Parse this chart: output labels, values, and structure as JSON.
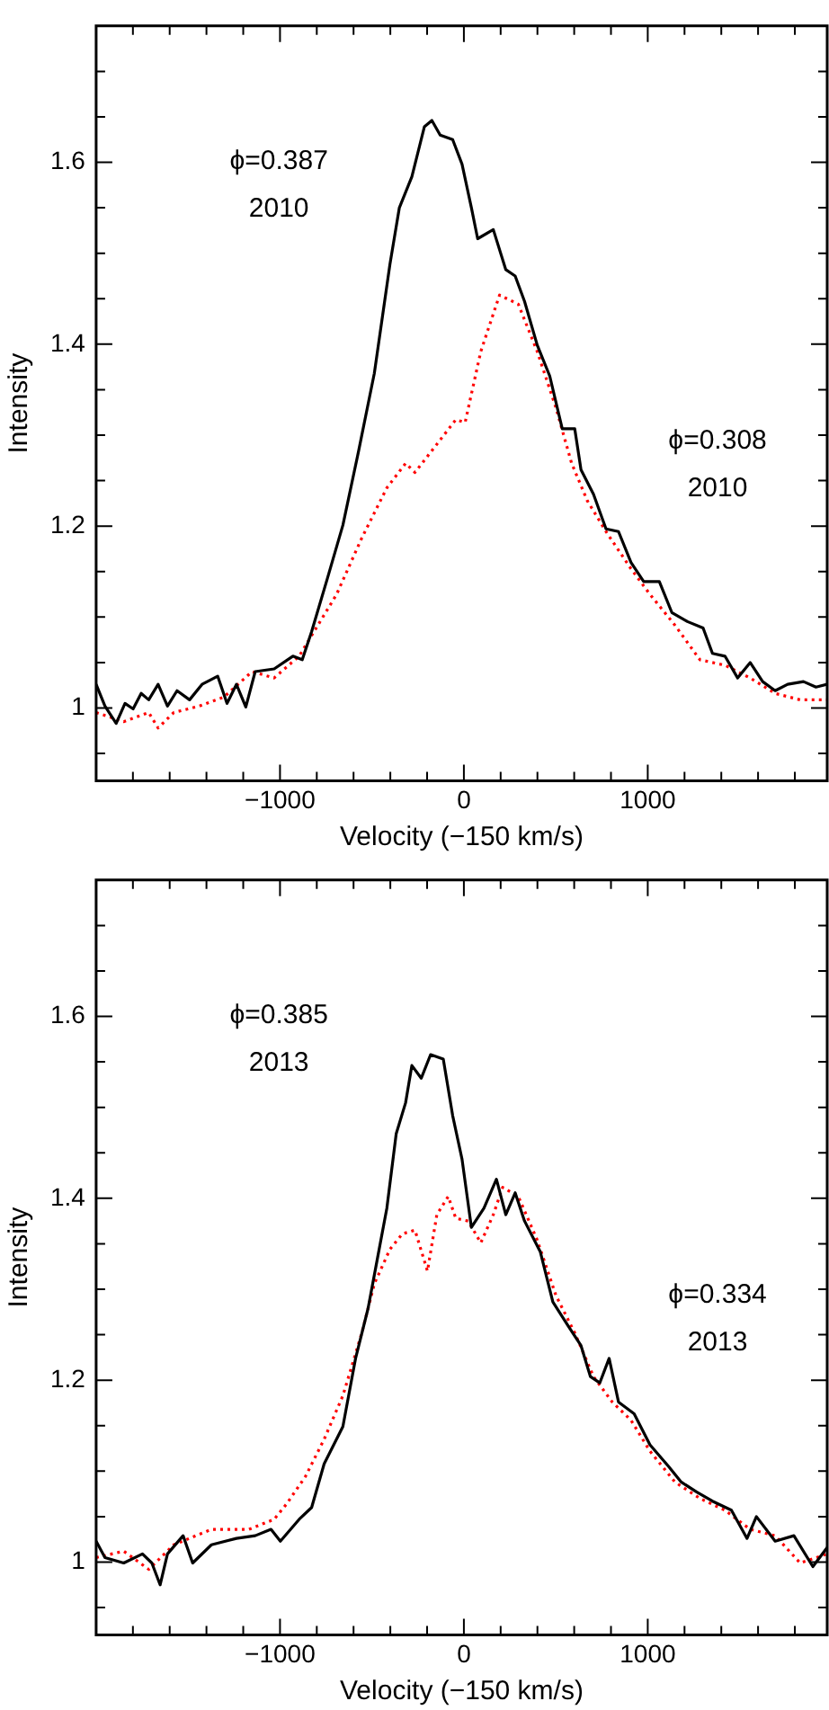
{
  "chart_data": [
    {
      "type": "line",
      "xlabel": "Velocity (−150 km/s)",
      "ylabel": "Intensity",
      "xlim": [
        -2000,
        1976
      ],
      "ylim": [
        0.92,
        1.75
      ],
      "xticks": [
        {
          "value": -1800,
          "label": null
        },
        {
          "value": -1600,
          "label": null
        },
        {
          "value": -1400,
          "label": null
        },
        {
          "value": -1200,
          "label": null
        },
        {
          "value": -1000,
          "label": "−1000"
        },
        {
          "value": -800,
          "label": null
        },
        {
          "value": -600,
          "label": null
        },
        {
          "value": -400,
          "label": null
        },
        {
          "value": -200,
          "label": null
        },
        {
          "value": 0,
          "label": "0"
        },
        {
          "value": 200,
          "label": null
        },
        {
          "value": 400,
          "label": null
        },
        {
          "value": 600,
          "label": null
        },
        {
          "value": 800,
          "label": null
        },
        1000,
        {
          "value": 1200,
          "label": null
        },
        {
          "value": 1400,
          "label": null
        },
        {
          "value": 1600,
          "label": null
        },
        {
          "value": 1800,
          "label": null
        }
      ],
      "yticks": [
        {
          "value": 0.95,
          "label": null
        },
        1,
        {
          "value": 1.05,
          "label": null
        },
        {
          "value": 1.1,
          "label": null
        },
        {
          "value": 1.15,
          "label": null
        },
        1.2,
        {
          "value": 1.25,
          "label": null
        },
        {
          "value": 1.3,
          "label": null
        },
        {
          "value": 1.35,
          "label": null
        },
        1.4,
        {
          "value": 1.45,
          "label": null
        },
        {
          "value": 1.5,
          "label": null
        },
        {
          "value": 1.55,
          "label": null
        },
        1.6,
        {
          "value": 1.65,
          "label": null
        },
        {
          "value": 1.7,
          "label": null
        }
      ],
      "grid": false,
      "legend": false,
      "marker": "none",
      "annotations": [
        "ϕ=0.387",
        "2010",
        "ϕ=0.308",
        "2010"
      ],
      "series": [
        {
          "color": "#000000",
          "line_style": "solid",
          "x": [
            -2000,
            -1952,
            -1891,
            -1843,
            -1799,
            -1755,
            -1714,
            -1663,
            -1612,
            -1560,
            -1492,
            -1424,
            -1339,
            -1288,
            -1237,
            -1186,
            -1135,
            -1032,
            -930,
            -879,
            -828,
            -743,
            -658,
            -572,
            -487,
            -402,
            -351,
            -283,
            -215,
            -174,
            -129,
            -61,
            -10,
            41,
            75,
            160,
            228,
            279,
            330,
            399,
            467,
            535,
            603,
            637,
            705,
            773,
            841,
            909,
            978,
            1063,
            1131,
            1216,
            1301,
            1352,
            1420,
            1489,
            1557,
            1625,
            1693,
            1761,
            1847,
            1915,
            1976
          ],
          "values": [
            1.026,
            1.002,
            0.983,
            1.005,
            0.999,
            1.016,
            1.009,
            1.026,
            1.002,
            1.019,
            1.009,
            1.026,
            1.035,
            1.005,
            1.026,
            1.001,
            1.04,
            1.043,
            1.057,
            1.053,
            1.084,
            1.142,
            1.201,
            1.283,
            1.368,
            1.488,
            1.55,
            1.584,
            1.639,
            1.646,
            1.63,
            1.625,
            1.598,
            1.55,
            1.516,
            1.526,
            1.482,
            1.475,
            1.447,
            1.399,
            1.365,
            1.307,
            1.307,
            1.262,
            1.235,
            1.197,
            1.194,
            1.16,
            1.139,
            1.139,
            1.105,
            1.095,
            1.088,
            1.06,
            1.057,
            1.033,
            1.05,
            1.029,
            1.019,
            1.026,
            1.029,
            1.023,
            1.026
          ]
        },
        {
          "color": "#ff0000",
          "line_style": "dotted",
          "x": [
            -2000,
            -1850,
            -1714,
            -1663,
            -1578,
            -1441,
            -1305,
            -1152,
            -1032,
            -896,
            -794,
            -692,
            -555,
            -419,
            -317,
            -266,
            -147,
            -44,
            7,
            92,
            194,
            296,
            399,
            501,
            586,
            671,
            773,
            909,
            1012,
            1148,
            1284,
            1420,
            1557,
            1693,
            1829,
            1976
          ],
          "values": [
            0.995,
            0.985,
            0.995,
            0.978,
            0.995,
            1.002,
            1.012,
            1.04,
            1.033,
            1.057,
            1.091,
            1.125,
            1.187,
            1.242,
            1.269,
            1.259,
            1.29,
            1.317,
            1.314,
            1.392,
            1.454,
            1.444,
            1.392,
            1.33,
            1.269,
            1.228,
            1.194,
            1.153,
            1.125,
            1.091,
            1.053,
            1.047,
            1.033,
            1.016,
            1.009,
            1.009
          ]
        }
      ]
    },
    {
      "type": "line",
      "xlabel": "Velocity (−150 km/s)",
      "ylabel": "Intensity",
      "xlim": [
        -2000,
        1976
      ],
      "ylim": [
        0.92,
        1.75
      ],
      "xticks": [
        {
          "value": -1800,
          "label": null
        },
        {
          "value": -1600,
          "label": null
        },
        {
          "value": -1400,
          "label": null
        },
        {
          "value": -1200,
          "label": null
        },
        {
          "value": -1000,
          "label": "−1000"
        },
        {
          "value": -800,
          "label": null
        },
        {
          "value": -600,
          "label": null
        },
        {
          "value": -400,
          "label": null
        },
        {
          "value": -200,
          "label": null
        },
        {
          "value": 0,
          "label": "0"
        },
        {
          "value": 200,
          "label": null
        },
        {
          "value": 400,
          "label": null
        },
        {
          "value": 600,
          "label": null
        },
        {
          "value": 800,
          "label": null
        },
        1000,
        {
          "value": 1200,
          "label": null
        },
        {
          "value": 1400,
          "label": null
        },
        {
          "value": 1600,
          "label": null
        },
        {
          "value": 1800,
          "label": null
        }
      ],
      "yticks": [
        {
          "value": 0.95,
          "label": null
        },
        1,
        {
          "value": 1.05,
          "label": null
        },
        {
          "value": 1.1,
          "label": null
        },
        {
          "value": 1.15,
          "label": null
        },
        1.2,
        {
          "value": 1.25,
          "label": null
        },
        {
          "value": 1.3,
          "label": null
        },
        {
          "value": 1.35,
          "label": null
        },
        1.4,
        {
          "value": 1.45,
          "label": null
        },
        {
          "value": 1.5,
          "label": null
        },
        {
          "value": 1.55,
          "label": null
        },
        1.6,
        {
          "value": 1.65,
          "label": null
        },
        {
          "value": 1.7,
          "label": null
        }
      ],
      "grid": false,
      "legend": false,
      "marker": "none",
      "annotations": [
        "ϕ=0.385",
        "2013",
        "ϕ=0.334",
        "2013"
      ],
      "series": [
        {
          "color": "#000000",
          "line_style": "solid",
          "x": [
            -2000,
            -1952,
            -1850,
            -1748,
            -1697,
            -1652,
            -1612,
            -1527,
            -1475,
            -1373,
            -1237,
            -1135,
            -1049,
            -998,
            -896,
            -828,
            -760,
            -658,
            -589,
            -521,
            -470,
            -419,
            -368,
            -317,
            -283,
            -232,
            -181,
            -112,
            -61,
            -10,
            41,
            109,
            177,
            228,
            279,
            330,
            416,
            484,
            569,
            637,
            688,
            739,
            790,
            841,
            926,
            1012,
            1114,
            1182,
            1267,
            1352,
            1455,
            1540,
            1591,
            1693,
            1795,
            1898,
            1976
          ],
          "values": [
            1.023,
            1.005,
            0.999,
            1.009,
            0.999,
            0.975,
            1.009,
            1.029,
            0.999,
            1.019,
            1.026,
            1.029,
            1.036,
            1.023,
            1.047,
            1.06,
            1.108,
            1.149,
            1.224,
            1.279,
            1.334,
            1.389,
            1.471,
            1.505,
            1.546,
            1.532,
            1.558,
            1.553,
            1.491,
            1.443,
            1.368,
            1.389,
            1.421,
            1.382,
            1.406,
            1.375,
            1.341,
            1.286,
            1.259,
            1.238,
            1.204,
            1.197,
            1.224,
            1.176,
            1.163,
            1.129,
            1.105,
            1.088,
            1.077,
            1.067,
            1.057,
            1.026,
            1.05,
            1.023,
            1.029,
            0.995,
            1.016
          ]
        },
        {
          "color": "#ff0000",
          "line_style": "dotted",
          "x": [
            -2000,
            -1850,
            -1714,
            -1578,
            -1373,
            -1169,
            -1032,
            -964,
            -862,
            -760,
            -658,
            -555,
            -487,
            -402,
            -334,
            -266,
            -198,
            -147,
            -85,
            -44,
            24,
            92,
            160,
            211,
            296,
            399,
            501,
            603,
            705,
            807,
            909,
            1012,
            1148,
            1284,
            1420,
            1557,
            1693,
            1829,
            1976
          ],
          "values": [
            1.005,
            1.012,
            0.992,
            1.019,
            1.036,
            1.036,
            1.047,
            1.064,
            1.094,
            1.135,
            1.183,
            1.252,
            1.306,
            1.344,
            1.361,
            1.365,
            1.32,
            1.382,
            1.402,
            1.378,
            1.375,
            1.351,
            1.382,
            1.412,
            1.402,
            1.354,
            1.293,
            1.252,
            1.204,
            1.176,
            1.156,
            1.122,
            1.088,
            1.07,
            1.057,
            1.036,
            1.029,
            0.999,
            1.009
          ]
        }
      ]
    }
  ]
}
